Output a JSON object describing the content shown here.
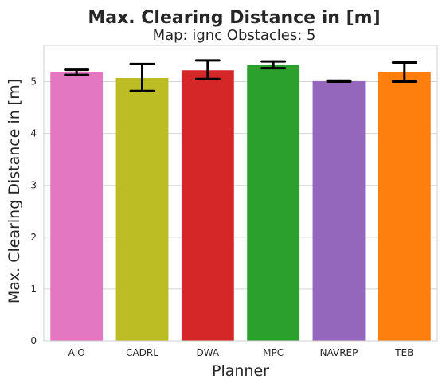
{
  "chart_data": {
    "type": "bar",
    "title": "Max. Clearing Distance in [m]",
    "subtitle": "Map: ignc Obstacles: 5",
    "xlabel": "Planner",
    "ylabel": "Max. Clearing Distance in [m]",
    "categories": [
      "AIO",
      "CADRL",
      "DWA",
      "MPC",
      "NAVREP",
      "TEB"
    ],
    "values": [
      5.18,
      5.07,
      5.22,
      5.32,
      5.01,
      5.18
    ],
    "error_low": [
      5.13,
      4.82,
      5.05,
      5.26,
      5.0,
      5.0
    ],
    "error_high": [
      5.23,
      5.34,
      5.41,
      5.39,
      5.02,
      5.37
    ],
    "colors": [
      "#e377c2",
      "#bcbd22",
      "#d62728",
      "#2ca02c",
      "#9467bd",
      "#ff7f0e"
    ],
    "yticks": [
      0,
      1,
      2,
      3,
      4,
      5
    ],
    "ylim": [
      0,
      5.7
    ],
    "grid": true
  }
}
